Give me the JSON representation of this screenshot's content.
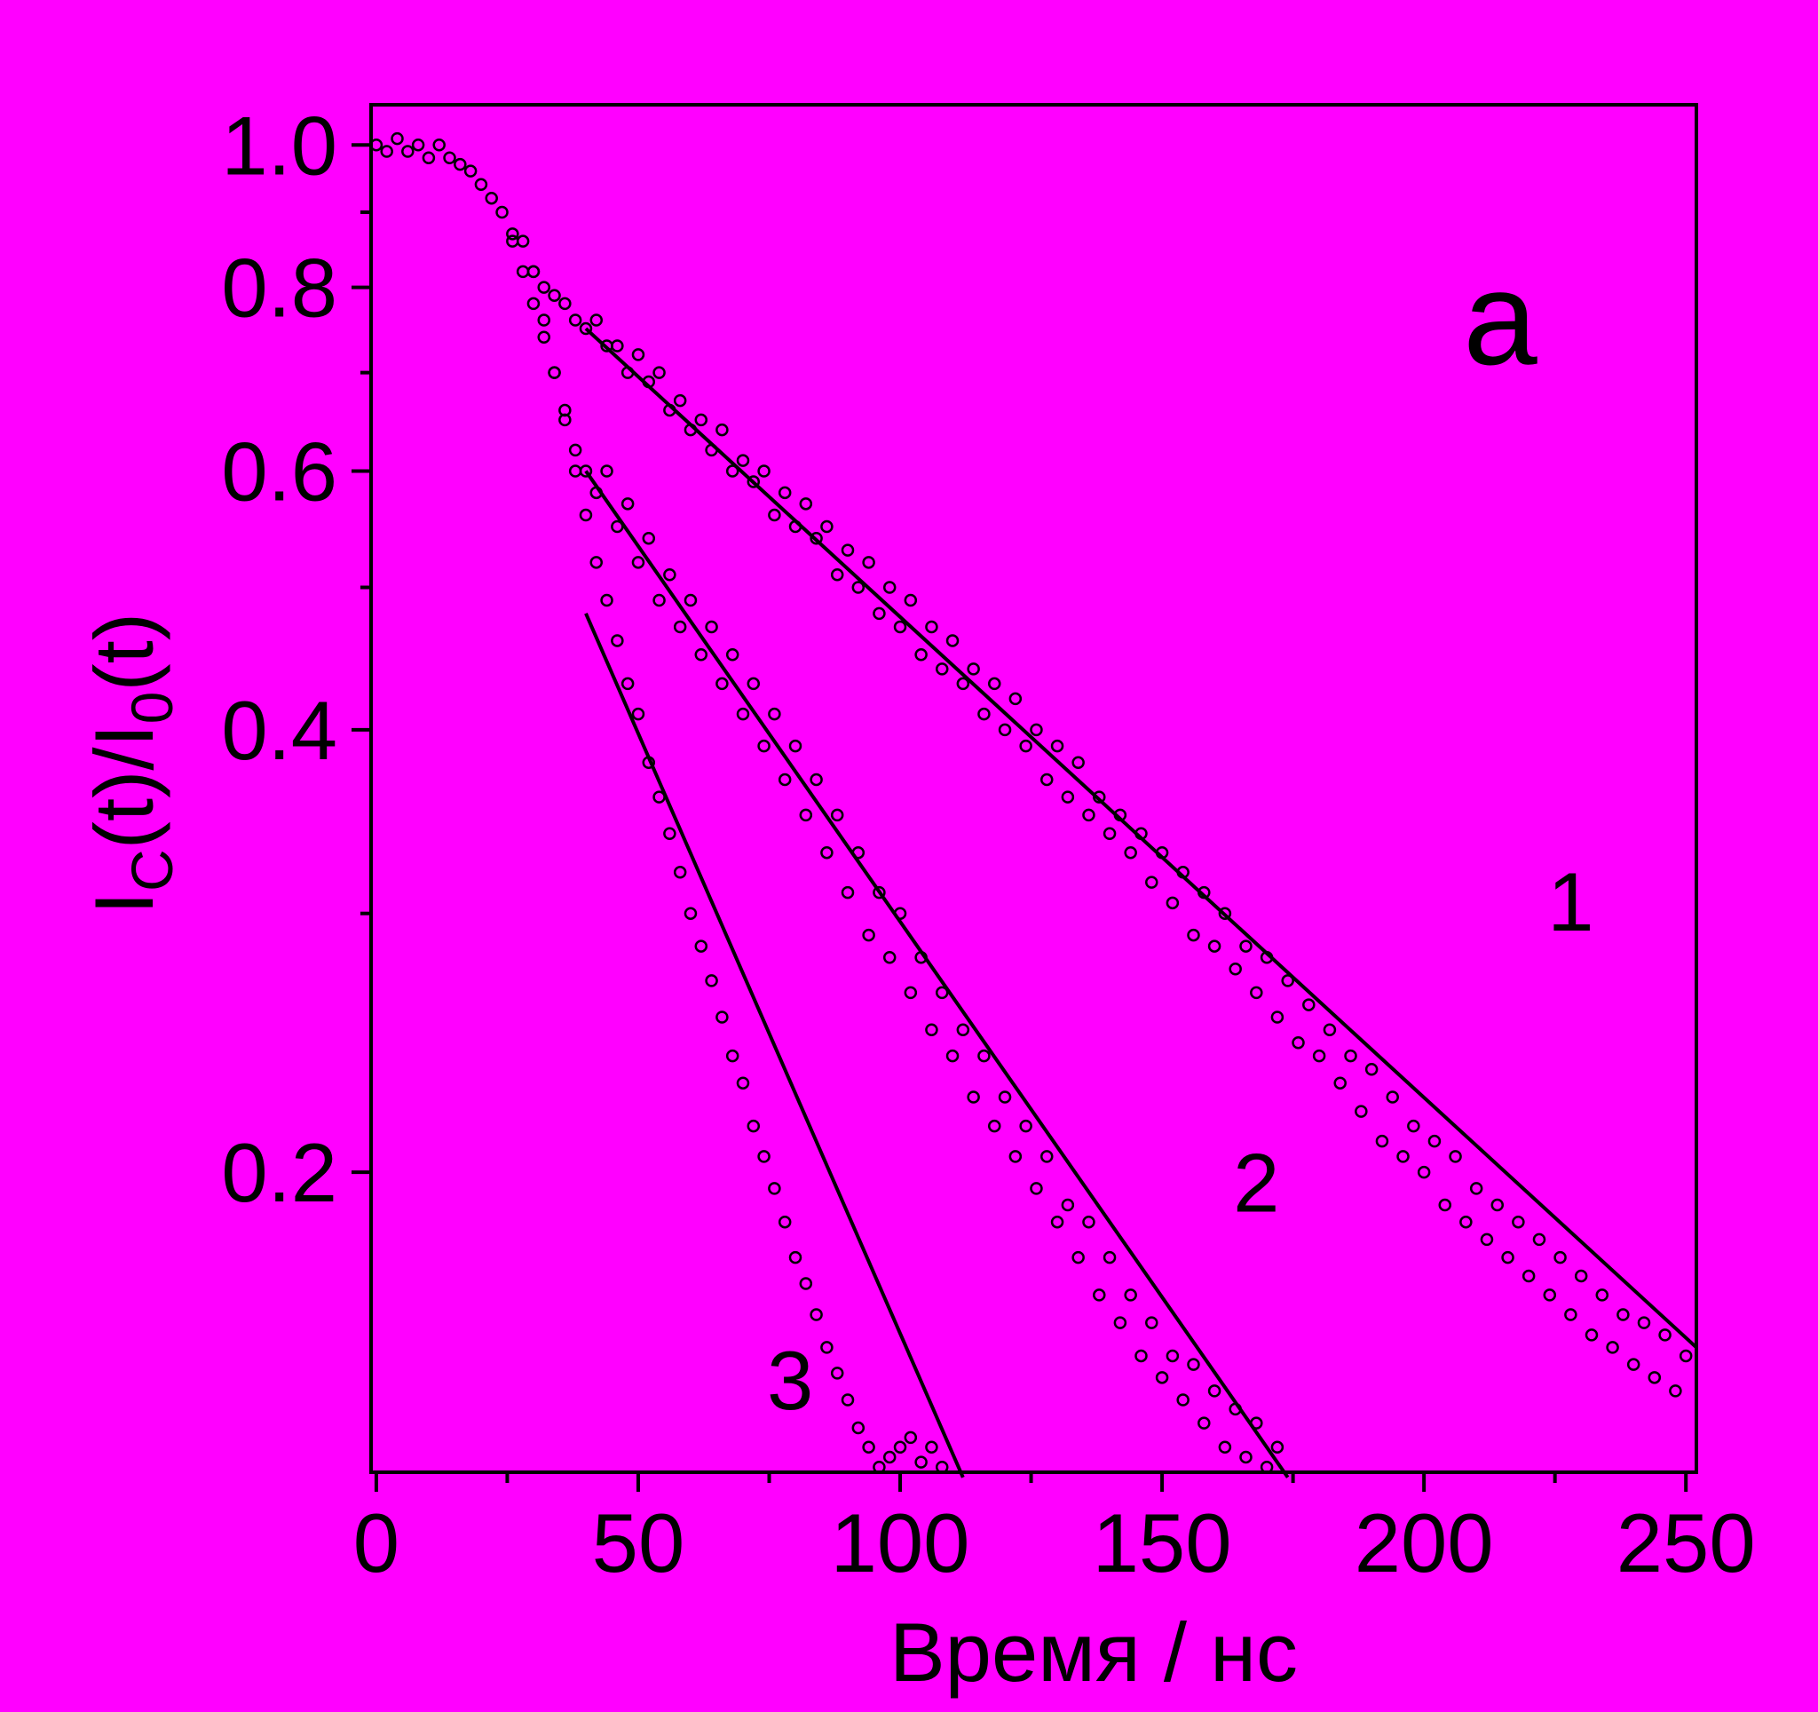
{
  "chart_data": {
    "type": "scatter",
    "panel_label": "a",
    "xlabel": "Время / нс",
    "ylabel": {
      "main": "I",
      "sub1": "C",
      "mid": "(t)/I",
      "sub2": "0",
      "end": "(t)"
    },
    "y_scale": "log",
    "xlim": [
      -1,
      252
    ],
    "ylim": [
      0.125,
      1.065
    ],
    "x_ticks": [
      {
        "value": 0,
        "label": "0"
      },
      {
        "value": 50,
        "label": "50"
      },
      {
        "value": 100,
        "label": "100"
      },
      {
        "value": 150,
        "label": "150"
      },
      {
        "value": 200,
        "label": "200"
      },
      {
        "value": 250,
        "label": "250"
      }
    ],
    "x_minor_ticks": [
      25,
      75,
      125,
      175,
      225
    ],
    "y_ticks": [
      {
        "value": 1.0,
        "label": "1.0"
      },
      {
        "value": 0.8,
        "label": "0.8"
      },
      {
        "value": 0.6,
        "label": "0.6"
      },
      {
        "value": 0.4,
        "label": "0.4"
      },
      {
        "value": 0.2,
        "label": "0.2"
      }
    ],
    "y_minor_ticks": [
      0.9,
      0.7,
      0.5,
      0.3
    ],
    "grid": false,
    "series": [
      {
        "label": "1",
        "label_pos": {
          "x": 228,
          "y": 0.292
        },
        "fit_line": {
          "x": [
            40,
            252
          ],
          "y": [
            0.75,
            0.152
          ]
        },
        "points": [
          [
            0,
            1.0
          ],
          [
            2,
            0.99
          ],
          [
            4,
            1.01
          ],
          [
            6,
            0.99
          ],
          [
            8,
            1.0
          ],
          [
            10,
            0.98
          ],
          [
            12,
            1.0
          ],
          [
            14,
            0.98
          ],
          [
            16,
            0.97
          ],
          [
            18,
            0.96
          ],
          [
            20,
            0.94
          ],
          [
            22,
            0.92
          ],
          [
            24,
            0.9
          ],
          [
            26,
            0.87
          ],
          [
            28,
            0.86
          ],
          [
            30,
            0.82
          ],
          [
            32,
            0.8
          ],
          [
            34,
            0.79
          ],
          [
            36,
            0.78
          ],
          [
            38,
            0.76
          ],
          [
            40,
            0.75
          ],
          [
            42,
            0.76
          ],
          [
            44,
            0.73
          ],
          [
            46,
            0.73
          ],
          [
            48,
            0.7
          ],
          [
            50,
            0.72
          ],
          [
            52,
            0.69
          ],
          [
            54,
            0.7
          ],
          [
            56,
            0.66
          ],
          [
            58,
            0.67
          ],
          [
            60,
            0.64
          ],
          [
            62,
            0.65
          ],
          [
            64,
            0.62
          ],
          [
            66,
            0.64
          ],
          [
            68,
            0.6
          ],
          [
            70,
            0.61
          ],
          [
            72,
            0.59
          ],
          [
            74,
            0.6
          ],
          [
            76,
            0.56
          ],
          [
            78,
            0.58
          ],
          [
            80,
            0.55
          ],
          [
            82,
            0.57
          ],
          [
            84,
            0.54
          ],
          [
            86,
            0.55
          ],
          [
            88,
            0.51
          ],
          [
            90,
            0.53
          ],
          [
            92,
            0.5
          ],
          [
            94,
            0.52
          ],
          [
            96,
            0.48
          ],
          [
            98,
            0.5
          ],
          [
            100,
            0.47
          ],
          [
            102,
            0.49
          ],
          [
            104,
            0.45
          ],
          [
            106,
            0.47
          ],
          [
            108,
            0.44
          ],
          [
            110,
            0.46
          ],
          [
            112,
            0.43
          ],
          [
            114,
            0.44
          ],
          [
            116,
            0.41
          ],
          [
            118,
            0.43
          ],
          [
            120,
            0.4
          ],
          [
            122,
            0.42
          ],
          [
            124,
            0.39
          ],
          [
            126,
            0.4
          ],
          [
            128,
            0.37
          ],
          [
            130,
            0.39
          ],
          [
            132,
            0.36
          ],
          [
            134,
            0.38
          ],
          [
            136,
            0.35
          ],
          [
            138,
            0.36
          ],
          [
            140,
            0.34
          ],
          [
            142,
            0.35
          ],
          [
            144,
            0.33
          ],
          [
            146,
            0.34
          ],
          [
            148,
            0.315
          ],
          [
            150,
            0.33
          ],
          [
            152,
            0.305
          ],
          [
            154,
            0.32
          ],
          [
            156,
            0.29
          ],
          [
            158,
            0.31
          ],
          [
            160,
            0.285
          ],
          [
            162,
            0.3
          ],
          [
            164,
            0.275
          ],
          [
            166,
            0.285
          ],
          [
            168,
            0.265
          ],
          [
            170,
            0.28
          ],
          [
            172,
            0.255
          ],
          [
            174,
            0.27
          ],
          [
            176,
            0.245
          ],
          [
            178,
            0.26
          ],
          [
            180,
            0.24
          ],
          [
            182,
            0.25
          ],
          [
            184,
            0.23
          ],
          [
            186,
            0.24
          ],
          [
            188,
            0.22
          ],
          [
            190,
            0.235
          ],
          [
            192,
            0.21
          ],
          [
            194,
            0.225
          ],
          [
            196,
            0.205
          ],
          [
            198,
            0.215
          ],
          [
            200,
            0.2
          ],
          [
            202,
            0.21
          ],
          [
            204,
            0.19
          ],
          [
            206,
            0.205
          ],
          [
            208,
            0.185
          ],
          [
            210,
            0.195
          ],
          [
            212,
            0.18
          ],
          [
            214,
            0.19
          ],
          [
            216,
            0.175
          ],
          [
            218,
            0.185
          ],
          [
            220,
            0.17
          ],
          [
            222,
            0.18
          ],
          [
            224,
            0.165
          ],
          [
            226,
            0.175
          ],
          [
            228,
            0.16
          ],
          [
            230,
            0.17
          ],
          [
            232,
            0.155
          ],
          [
            234,
            0.165
          ],
          [
            236,
            0.152
          ],
          [
            238,
            0.16
          ],
          [
            240,
            0.148
          ],
          [
            242,
            0.158
          ],
          [
            244,
            0.145
          ],
          [
            246,
            0.155
          ],
          [
            248,
            0.142
          ],
          [
            250,
            0.15
          ]
        ]
      },
      {
        "label": "2",
        "label_pos": {
          "x": 168,
          "y": 0.188
        },
        "fit_line": {
          "x": [
            40,
            174
          ],
          "y": [
            0.6,
            0.124
          ]
        },
        "points": [
          [
            26,
            0.86
          ],
          [
            28,
            0.82
          ],
          [
            30,
            0.78
          ],
          [
            32,
            0.74
          ],
          [
            34,
            0.7
          ],
          [
            36,
            0.66
          ],
          [
            38,
            0.62
          ],
          [
            40,
            0.6
          ],
          [
            42,
            0.58
          ],
          [
            44,
            0.6
          ],
          [
            46,
            0.55
          ],
          [
            48,
            0.57
          ],
          [
            50,
            0.52
          ],
          [
            52,
            0.54
          ],
          [
            54,
            0.49
          ],
          [
            56,
            0.51
          ],
          [
            58,
            0.47
          ],
          [
            60,
            0.49
          ],
          [
            62,
            0.45
          ],
          [
            64,
            0.47
          ],
          [
            66,
            0.43
          ],
          [
            68,
            0.45
          ],
          [
            70,
            0.41
          ],
          [
            72,
            0.43
          ],
          [
            74,
            0.39
          ],
          [
            76,
            0.41
          ],
          [
            78,
            0.37
          ],
          [
            80,
            0.39
          ],
          [
            82,
            0.35
          ],
          [
            84,
            0.37
          ],
          [
            86,
            0.33
          ],
          [
            88,
            0.35
          ],
          [
            90,
            0.31
          ],
          [
            92,
            0.33
          ],
          [
            94,
            0.29
          ],
          [
            96,
            0.31
          ],
          [
            98,
            0.28
          ],
          [
            100,
            0.3
          ],
          [
            102,
            0.265
          ],
          [
            104,
            0.28
          ],
          [
            106,
            0.25
          ],
          [
            108,
            0.265
          ],
          [
            110,
            0.24
          ],
          [
            112,
            0.25
          ],
          [
            114,
            0.225
          ],
          [
            116,
            0.24
          ],
          [
            118,
            0.215
          ],
          [
            120,
            0.225
          ],
          [
            122,
            0.205
          ],
          [
            124,
            0.215
          ],
          [
            126,
            0.195
          ],
          [
            128,
            0.205
          ],
          [
            130,
            0.185
          ],
          [
            132,
            0.19
          ],
          [
            134,
            0.175
          ],
          [
            136,
            0.185
          ],
          [
            138,
            0.165
          ],
          [
            140,
            0.175
          ],
          [
            142,
            0.158
          ],
          [
            144,
            0.165
          ],
          [
            146,
            0.15
          ],
          [
            148,
            0.158
          ],
          [
            150,
            0.145
          ],
          [
            152,
            0.15
          ],
          [
            154,
            0.14
          ],
          [
            156,
            0.148
          ],
          [
            158,
            0.135
          ],
          [
            160,
            0.142
          ],
          [
            162,
            0.13
          ],
          [
            164,
            0.138
          ],
          [
            166,
            0.128
          ],
          [
            168,
            0.135
          ],
          [
            170,
            0.126
          ],
          [
            172,
            0.13
          ]
        ]
      },
      {
        "label": "3",
        "label_pos": {
          "x": 79,
          "y": 0.138
        },
        "fit_line": {
          "x": [
            40,
            112
          ],
          "y": [
            0.48,
            0.124
          ]
        },
        "points": [
          [
            30,
            0.82
          ],
          [
            32,
            0.76
          ],
          [
            34,
            0.7
          ],
          [
            36,
            0.65
          ],
          [
            38,
            0.6
          ],
          [
            40,
            0.56
          ],
          [
            42,
            0.52
          ],
          [
            44,
            0.49
          ],
          [
            46,
            0.46
          ],
          [
            48,
            0.43
          ],
          [
            50,
            0.41
          ],
          [
            52,
            0.38
          ],
          [
            54,
            0.36
          ],
          [
            56,
            0.34
          ],
          [
            58,
            0.32
          ],
          [
            60,
            0.3
          ],
          [
            62,
            0.285
          ],
          [
            64,
            0.27
          ],
          [
            66,
            0.255
          ],
          [
            68,
            0.24
          ],
          [
            70,
            0.23
          ],
          [
            72,
            0.215
          ],
          [
            74,
            0.205
          ],
          [
            76,
            0.195
          ],
          [
            78,
            0.185
          ],
          [
            80,
            0.175
          ],
          [
            82,
            0.168
          ],
          [
            84,
            0.16
          ],
          [
            86,
            0.152
          ],
          [
            88,
            0.146
          ],
          [
            90,
            0.14
          ],
          [
            92,
            0.134
          ],
          [
            94,
            0.13
          ],
          [
            96,
            0.126
          ],
          [
            98,
            0.128
          ],
          [
            100,
            0.13
          ],
          [
            102,
            0.132
          ],
          [
            104,
            0.127
          ],
          [
            106,
            0.13
          ],
          [
            108,
            0.126
          ]
        ]
      }
    ]
  }
}
